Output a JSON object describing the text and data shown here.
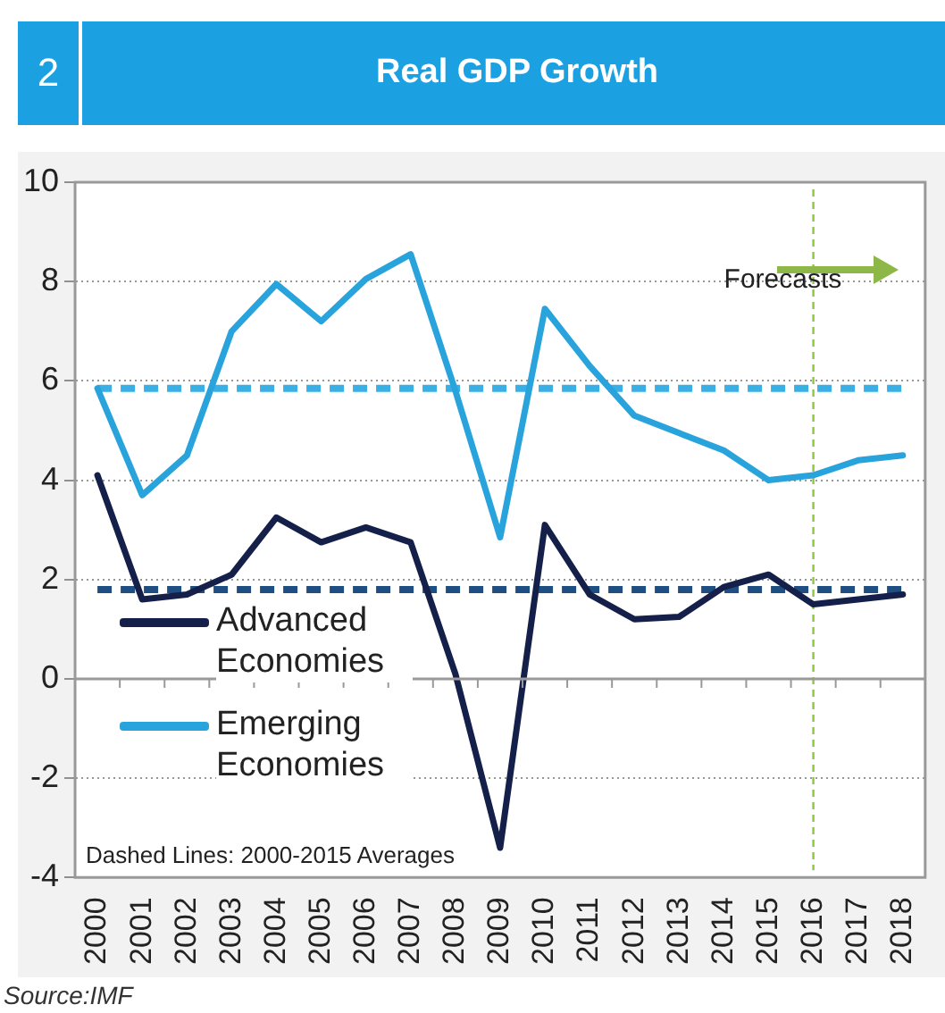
{
  "chart_data": {
    "type": "line",
    "title": "Real GDP Growth",
    "categories": [
      "2000",
      "2001",
      "2002",
      "2003",
      "2004",
      "2005",
      "2006",
      "2007",
      "2008",
      "2009",
      "2010",
      "2011",
      "2012",
      "2013",
      "2014",
      "2015",
      "2016",
      "2017",
      "2018"
    ],
    "series": [
      {
        "name": "Advanced Economies",
        "color": "#14204a",
        "values": [
          4.1,
          1.6,
          1.7,
          2.1,
          3.25,
          2.75,
          3.05,
          2.75,
          0.1,
          -3.4,
          3.1,
          1.7,
          1.2,
          1.25,
          1.85,
          2.1,
          1.5,
          1.6,
          1.7
        ]
      },
      {
        "name": "Emerging Economies",
        "color": "#29a3dc",
        "values": [
          5.85,
          3.7,
          4.5,
          7.0,
          7.95,
          7.2,
          8.05,
          8.55,
          5.8,
          2.85,
          7.45,
          6.3,
          5.3,
          4.95,
          4.6,
          4.0,
          4.1,
          4.4,
          4.5
        ]
      }
    ],
    "ylim": [
      -4,
      10
    ],
    "yticks": [
      -4,
      -2,
      0,
      2,
      4,
      6,
      8,
      10
    ],
    "grid": "y",
    "legend": "left",
    "line_style": "solid",
    "marker": "none",
    "ref_lines": [
      {
        "axis": "y",
        "value": 5.85,
        "color": "#38b0e6",
        "line_style": "dashed"
      },
      {
        "axis": "y",
        "value": 1.8,
        "color": "#1f4e82",
        "line_style": "dashed"
      },
      {
        "axis": "x",
        "value": "2016",
        "color": "#8dc63f",
        "line_style": "dashed"
      }
    ],
    "annotations": [
      "2",
      "Forecasts",
      "Dashed Lines: 2000-2015 Averages",
      "Source:IMF"
    ]
  }
}
